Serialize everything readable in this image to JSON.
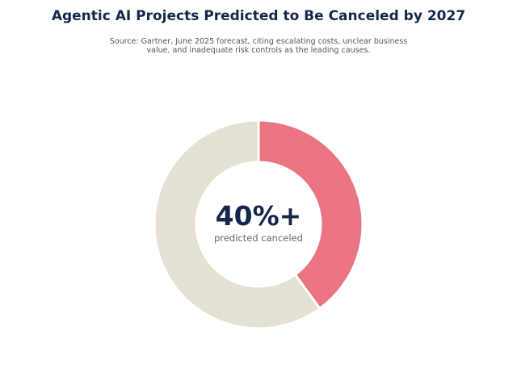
{
  "chart_data": {
    "type": "pie",
    "title": "Agentic AI Projects Predicted to Be Canceled by 2027",
    "subtitle": "Source: Gartner, June 2025 forecast, citing escalating costs, unclear business value, and inadequate risk controls as the leading causes.",
    "slices": [
      {
        "name": "",
        "value": 40,
        "color": "#ea7482"
      },
      {
        "name": "",
        "value": 60,
        "color": "#e4e0d4"
      }
    ],
    "center_value": "40%+",
    "center_label": "predicted canceled",
    "donut": true,
    "legend": "none"
  }
}
